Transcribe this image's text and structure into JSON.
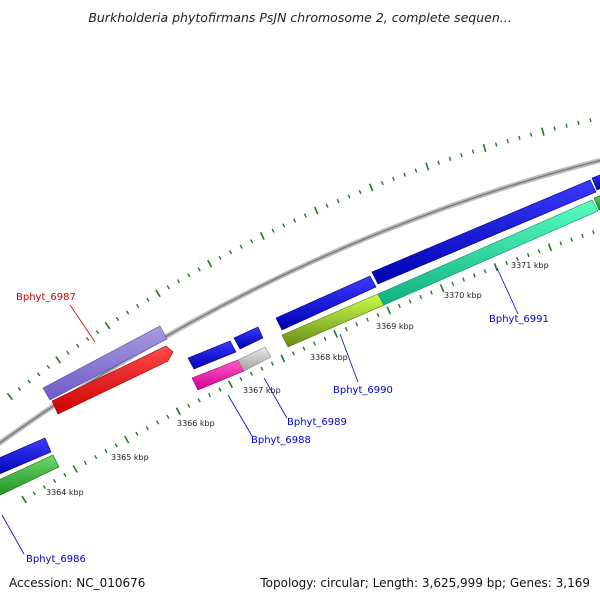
{
  "title": "Burkholderia phytofirmans PsJN chromosome 2, complete sequen...",
  "footer": {
    "accession": "Accession: NC_010676",
    "summary": "Topology: circular; Length: 3,625,999 bp; Genes: 3,169"
  },
  "colors": {
    "backbone": "#8a8a8a",
    "tick": "#1f7a1f",
    "label_default": "#0000cc",
    "label_highlight": "#cc0000"
  },
  "ticks": [
    "3364 kbp",
    "3365 kbp",
    "3366 kbp",
    "3367 kbp",
    "3368 kbp",
    "3369 kbp",
    "3370 kbp",
    "3371 kbp"
  ],
  "genes": [
    {
      "name": "Bphyt_6986",
      "color": "#0000cc"
    },
    {
      "name": "Bphyt_6987",
      "color": "#cc0000"
    },
    {
      "name": "Bphyt_6988",
      "color": "#0000cc"
    },
    {
      "name": "Bphyt_6989",
      "color": "#0000cc"
    },
    {
      "name": "Bphyt_6990",
      "color": "#0000cc"
    },
    {
      "name": "Bphyt_6991",
      "color": "#0000cc"
    }
  ]
}
